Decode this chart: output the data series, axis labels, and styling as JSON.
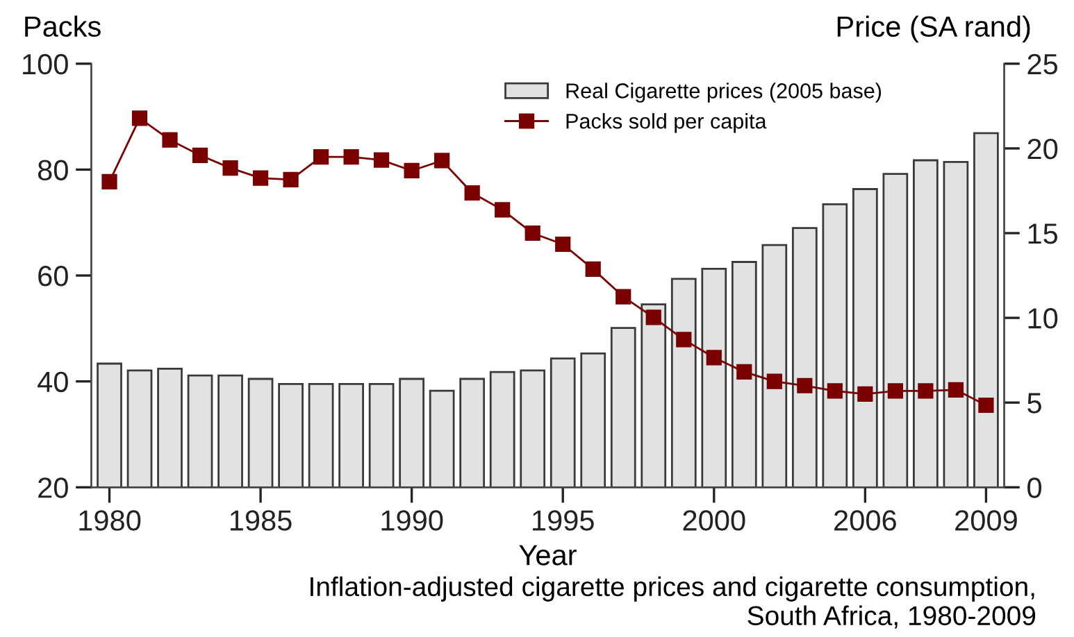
{
  "chart_data": {
    "type": "bar",
    "xlabel": "Year",
    "ylabel": "Packs",
    "y2label": "Price (SA rand)",
    "categories": [
      "1980",
      null,
      null,
      null,
      null,
      "1985",
      null,
      null,
      null,
      null,
      "1990",
      null,
      null,
      null,
      null,
      "1995",
      null,
      null,
      null,
      null,
      "2000",
      null,
      null,
      null,
      null,
      "2006",
      null,
      null,
      null,
      "2009"
    ],
    "series": [
      {
        "name": "Real Cigarette prices (2005 base)",
        "axis": "y2",
        "color": "#e1e2e4",
        "values": [
          7.3,
          6.9,
          7.0,
          6.6,
          6.6,
          6.4,
          6.1,
          6.1,
          6.1,
          6.1,
          6.4,
          5.7,
          6.4,
          6.8,
          6.9,
          7.6,
          7.9,
          9.4,
          10.8,
          12.3,
          12.9,
          13.3,
          14.3,
          15.3,
          16.7,
          17.6,
          18.5,
          19.3,
          19.2,
          20.9
        ]
      },
      {
        "name": "Packs sold per capita",
        "type": "line",
        "color": "#7a0000",
        "marker": "square",
        "values": [
          77.7,
          89.7,
          85.6,
          82.7,
          80.3,
          78.4,
          78.1,
          82.4,
          82.4,
          81.8,
          79.8,
          81.7,
          75.6,
          72.4,
          68.0,
          65.9,
          61.2,
          56.0,
          52.1,
          47.9,
          44.5,
          41.8,
          40.0,
          39.2,
          38.2,
          37.6,
          38.2,
          38.2,
          38.4,
          35.5
        ]
      }
    ],
    "ylim": [
      20,
      100
    ],
    "yticks": [
      20,
      40,
      60,
      80,
      100
    ],
    "y2lim": [
      0,
      25
    ],
    "y2ticks": [
      0,
      5,
      10,
      15,
      20,
      25
    ],
    "grid": false,
    "legend": "top",
    "annotations": [
      "Inflation-adjusted cigarette prices and cigarette consumption,\nSouth Africa, 1980-2009"
    ]
  }
}
